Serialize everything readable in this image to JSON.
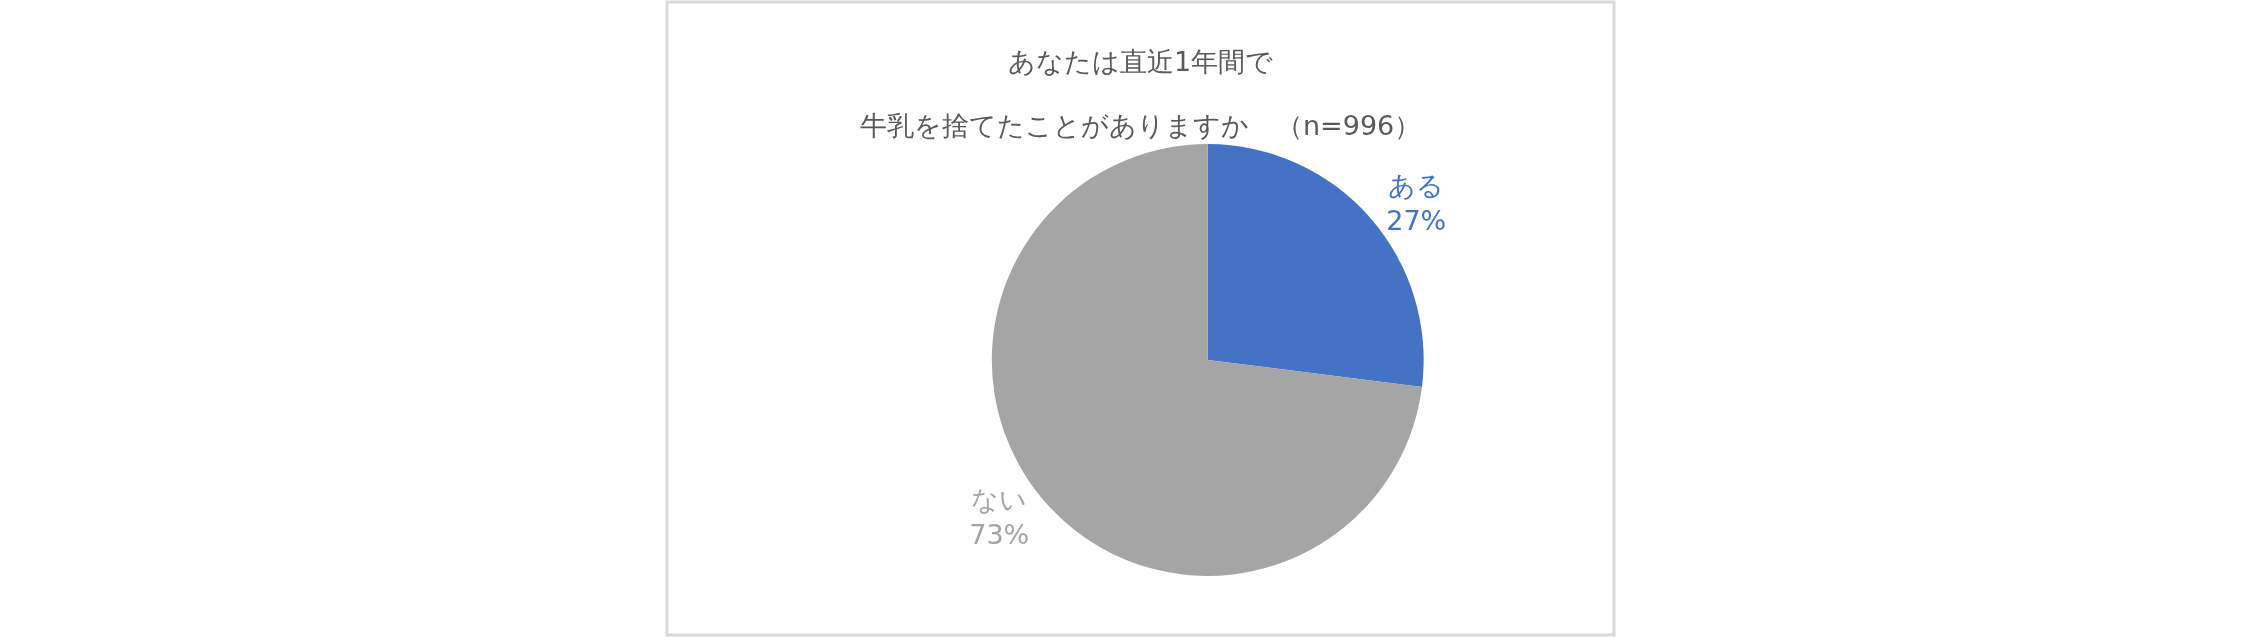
{
  "chart_data": {
    "type": "pie",
    "title": "あなたは直近1年間で",
    "subtitle": "牛乳を捨てたことがありますか　（n=996）",
    "categories": [
      "ある",
      "ない"
    ],
    "values": [
      27,
      73
    ],
    "colors": [
      "#4472c4",
      "#a5a5a5"
    ],
    "value_labels": [
      "27%",
      "73%"
    ],
    "legend": false
  }
}
